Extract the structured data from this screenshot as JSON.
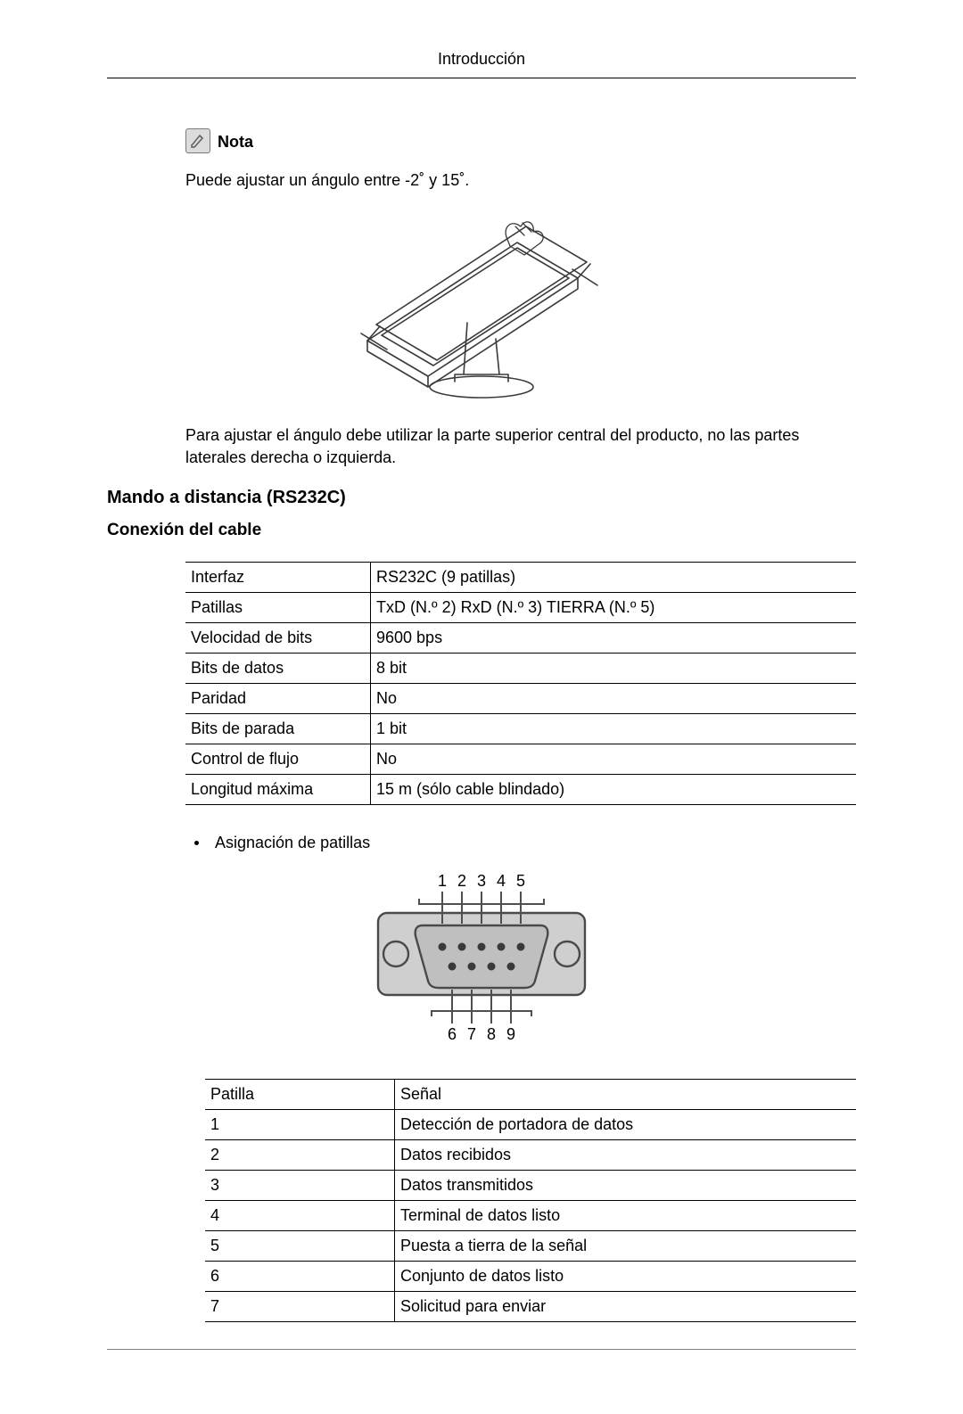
{
  "header": {
    "title": "Introducción"
  },
  "nota": {
    "label": "Nota",
    "text": "Puede ajustar un ángulo entre -2˚ y 15˚.",
    "icon_bg": "#dcdcdc",
    "icon_border": "#7a7a7a",
    "icon_stroke": "#5a5a5a"
  },
  "monitor_figure": {
    "stroke": "#3a3a3a",
    "shade": "#6f6f6f"
  },
  "caption": "Para ajustar el ángulo debe utilizar la parte superior central del producto, no las partes laterales derecha o izquierda.",
  "section1": {
    "title": "Mando a distancia (RS232C)",
    "subtitle": "Conexión del cable"
  },
  "spec_table": {
    "border_color": "#000000",
    "font_size": 18,
    "rows": [
      {
        "param": "Interfaz",
        "value": "RS232C (9 patillas)"
      },
      {
        "param": "Patillas",
        "value": "TxD (N.º 2) RxD (N.º 3) TIERRA (N.º 5)"
      },
      {
        "param": "Velocidad de bits",
        "value": "9600 bps"
      },
      {
        "param": "Bits de datos",
        "value": "8 bit"
      },
      {
        "param": "Paridad",
        "value": "No"
      },
      {
        "param": "Bits de parada",
        "value": "1 bit"
      },
      {
        "param": "Control de flujo",
        "value": "No"
      },
      {
        "param": "Longitud máxima",
        "value": "15 m (sólo cable blindado)"
      }
    ]
  },
  "bullet": {
    "text": "Asignación de patillas"
  },
  "connector": {
    "plate_fill": "#cfcfcf",
    "plate_stroke": "#4a4a4a",
    "shell_fill": "#bfbfbf",
    "pin_fill": "#3a3a3a",
    "line_stroke": "#4f4f4f",
    "label_color": "#000000",
    "top_labels": [
      "1",
      "2",
      "3",
      "4",
      "5"
    ],
    "bottom_labels": [
      "6",
      "7",
      "8",
      "9"
    ]
  },
  "pin_table": {
    "header": {
      "c1": "Patilla",
      "c2": "Señal"
    },
    "rows": [
      {
        "c1": "1",
        "c2": "Detección de portadora de datos"
      },
      {
        "c1": "2",
        "c2": "Datos recibidos"
      },
      {
        "c1": "3",
        "c2": "Datos transmitidos"
      },
      {
        "c1": "4",
        "c2": "Terminal de datos listo"
      },
      {
        "c1": "5",
        "c2": "Puesta a tierra de la señal"
      },
      {
        "c1": "6",
        "c2": "Conjunto de datos listo"
      },
      {
        "c1": "7",
        "c2": "Solicitud para enviar"
      }
    ]
  }
}
